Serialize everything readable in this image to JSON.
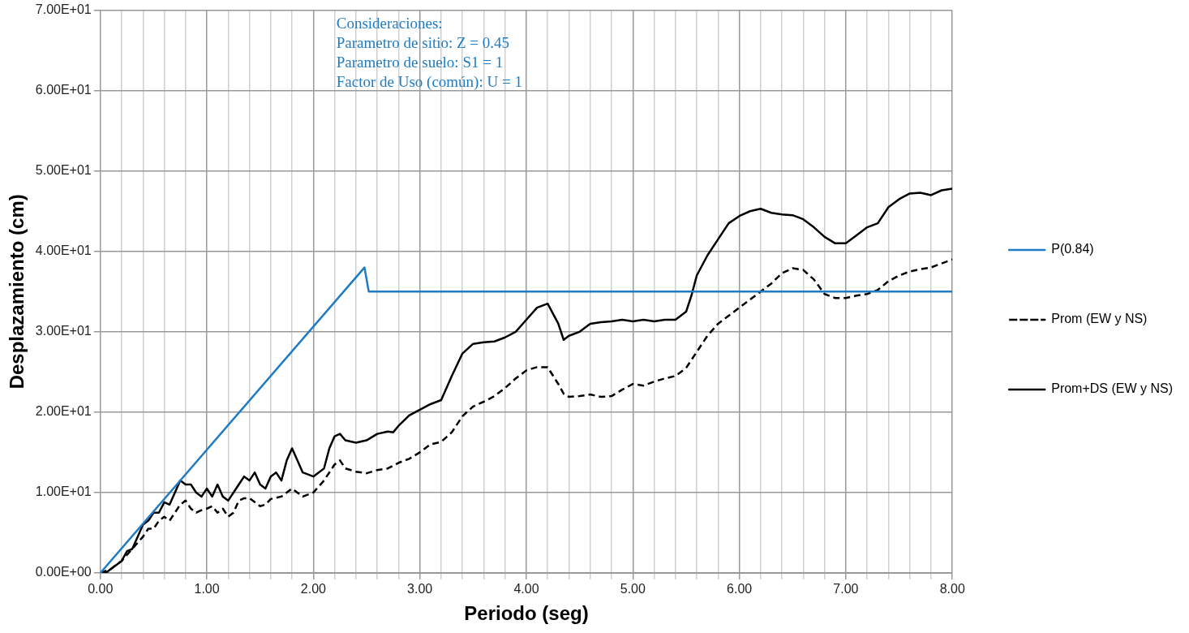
{
  "chart_data": {
    "type": "line",
    "xlabel": "Periodo (seg)",
    "ylabel": "Desplazamiento (cm)",
    "annotations": [
      "Consideraciones:",
      "Parametro de sitio: Z = 0.45",
      "Parametro de suelo: S1 = 1",
      "Factor de Uso (común): U = 1"
    ],
    "xlim": [
      0,
      8
    ],
    "xticks": [
      {
        "value": 0,
        "label": "0.00"
      },
      {
        "value": 0.2,
        "label": null
      },
      {
        "value": 0.4,
        "label": null
      },
      {
        "value": 0.6,
        "label": null
      },
      {
        "value": 0.8,
        "label": null
      },
      {
        "value": 1,
        "label": "1.00"
      },
      {
        "value": 1.2,
        "label": null
      },
      {
        "value": 1.4,
        "label": null
      },
      {
        "value": 1.6,
        "label": null
      },
      {
        "value": 1.8,
        "label": null
      },
      {
        "value": 2,
        "label": "2.00"
      },
      {
        "value": 2.2,
        "label": null
      },
      {
        "value": 2.4,
        "label": null
      },
      {
        "value": 2.6,
        "label": null
      },
      {
        "value": 2.8,
        "label": null
      },
      {
        "value": 3,
        "label": "3.00"
      },
      {
        "value": 3.2,
        "label": null
      },
      {
        "value": 3.4,
        "label": null
      },
      {
        "value": 3.6,
        "label": null
      },
      {
        "value": 3.8,
        "label": null
      },
      {
        "value": 4,
        "label": "4.00"
      },
      {
        "value": 4.2,
        "label": null
      },
      {
        "value": 4.4,
        "label": null
      },
      {
        "value": 4.6,
        "label": null
      },
      {
        "value": 4.8,
        "label": null
      },
      {
        "value": 5,
        "label": "5.00"
      },
      {
        "value": 5.2,
        "label": null
      },
      {
        "value": 5.4,
        "label": null
      },
      {
        "value": 5.6,
        "label": null
      },
      {
        "value": 5.8,
        "label": null
      },
      {
        "value": 6,
        "label": "6.00"
      },
      {
        "value": 6.2,
        "label": null
      },
      {
        "value": 6.4,
        "label": null
      },
      {
        "value": 6.6,
        "label": null
      },
      {
        "value": 6.8,
        "label": null
      },
      {
        "value": 7,
        "label": "7.00"
      },
      {
        "value": 7.2,
        "label": null
      },
      {
        "value": 7.4,
        "label": null
      },
      {
        "value": 7.6,
        "label": null
      },
      {
        "value": 7.8,
        "label": null
      },
      {
        "value": 8,
        "label": "8.00"
      }
    ],
    "ylim": [
      0,
      70
    ],
    "yticks": [
      {
        "value": 0,
        "label": "0.00E+00"
      },
      {
        "value": 10,
        "label": "1.00E+01"
      },
      {
        "value": 20,
        "label": "2.00E+01"
      },
      {
        "value": 30,
        "label": "3.00E+01"
      },
      {
        "value": 40,
        "label": "4.00E+01"
      },
      {
        "value": 50,
        "label": "5.00E+01"
      },
      {
        "value": 60,
        "label": "6.00E+01"
      },
      {
        "value": 70,
        "label": "7.00E+01"
      }
    ],
    "grid": true,
    "legend": "right",
    "marker": "none",
    "series": [
      {
        "name": "P(0.84)",
        "color": "#1f7bc4",
        "line_style": "solid",
        "x": [
          0,
          2.48,
          2.52,
          8
        ],
        "values": [
          0,
          38,
          35,
          35
        ]
      },
      {
        "name": "Prom (EW y NS)",
        "color": "#000000",
        "line_style": "dashed",
        "x": [
          0,
          0.1,
          0.2,
          0.3,
          0.4,
          0.45,
          0.5,
          0.55,
          0.6,
          0.65,
          0.7,
          0.75,
          0.8,
          0.85,
          0.9,
          0.95,
          1,
          1.05,
          1.1,
          1.15,
          1.2,
          1.25,
          1.3,
          1.35,
          1.4,
          1.45,
          1.5,
          1.55,
          1.6,
          1.7,
          1.8,
          1.85,
          1.9,
          2,
          2.1,
          2.2,
          2.25,
          2.3,
          2.4,
          2.5,
          2.6,
          2.7,
          2.8,
          2.9,
          3,
          3.1,
          3.2,
          3.3,
          3.4,
          3.5,
          3.6,
          3.7,
          3.8,
          3.9,
          4,
          4.1,
          4.2,
          4.3,
          4.35,
          4.4,
          4.5,
          4.6,
          4.7,
          4.8,
          4.9,
          5,
          5.1,
          5.2,
          5.3,
          5.4,
          5.5,
          5.6,
          5.7,
          5.8,
          5.9,
          6,
          6.1,
          6.2,
          6.3,
          6.4,
          6.5,
          6.6,
          6.7,
          6.8,
          6.9,
          7,
          7.1,
          7.2,
          7.3,
          7.4,
          7.5,
          7.6,
          7.7,
          7.8,
          7.9,
          8
        ],
        "values": [
          0,
          0.5,
          1.5,
          3,
          4.5,
          5.5,
          5.5,
          6.5,
          7,
          6.5,
          7.5,
          8.5,
          9,
          8,
          7.5,
          7.8,
          8,
          8.3,
          7.5,
          8,
          7,
          7.5,
          9,
          9.3,
          9.3,
          8.8,
          8.3,
          8.5,
          9.2,
          9.5,
          10.5,
          10,
          9.5,
          10,
          11.5,
          13.5,
          14,
          13,
          12.6,
          12.4,
          12.8,
          13,
          13.7,
          14.2,
          15,
          16,
          16.3,
          17.5,
          19.5,
          20.7,
          21.3,
          22,
          23,
          24.2,
          25.2,
          25.6,
          25.6,
          23.5,
          22.3,
          21.9,
          22,
          22.2,
          21.9,
          22,
          22.8,
          23.5,
          23.3,
          23.8,
          24.2,
          24.5,
          25.5,
          27.5,
          29.5,
          31,
          32,
          33,
          34,
          35,
          36,
          37.3,
          37.9,
          37.7,
          36.5,
          34.7,
          34.2,
          34.2,
          34.5,
          34.7,
          35.2,
          36.3,
          37,
          37.5,
          37.8,
          38,
          38.5,
          39
        ]
      },
      {
        "name": "Prom+DS (EW y NS)",
        "color": "#000000",
        "line_style": "solid",
        "x": [
          0,
          0.05,
          0.1,
          0.2,
          0.25,
          0.3,
          0.35,
          0.4,
          0.45,
          0.5,
          0.55,
          0.6,
          0.65,
          0.7,
          0.75,
          0.8,
          0.85,
          0.9,
          0.95,
          1,
          1.05,
          1.1,
          1.15,
          1.2,
          1.25,
          1.3,
          1.35,
          1.4,
          1.45,
          1.5,
          1.55,
          1.6,
          1.65,
          1.7,
          1.75,
          1.8,
          1.85,
          1.9,
          2,
          2.05,
          2.1,
          2.15,
          2.2,
          2.25,
          2.3,
          2.4,
          2.5,
          2.6,
          2.7,
          2.75,
          2.8,
          2.9,
          3,
          3.1,
          3.2,
          3.3,
          3.4,
          3.5,
          3.6,
          3.7,
          3.8,
          3.9,
          4,
          4.1,
          4.2,
          4.3,
          4.35,
          4.4,
          4.5,
          4.6,
          4.7,
          4.8,
          4.9,
          5,
          5.1,
          5.2,
          5.3,
          5.4,
          5.5,
          5.55,
          5.6,
          5.7,
          5.8,
          5.9,
          6,
          6.1,
          6.2,
          6.3,
          6.4,
          6.5,
          6.6,
          6.7,
          6.8,
          6.9,
          7,
          7.1,
          7.2,
          7.3,
          7.4,
          7.5,
          7.6,
          7.7,
          7.8,
          7.9,
          8
        ],
        "values": [
          0,
          0,
          0.5,
          1.5,
          2.7,
          3,
          4.5,
          6,
          6.5,
          7.5,
          7.5,
          8.8,
          8.5,
          10,
          11.5,
          11,
          11,
          10,
          9.5,
          10.5,
          9.5,
          11,
          9.5,
          9,
          10,
          11,
          12,
          11.5,
          12.5,
          11,
          10.5,
          12,
          12.5,
          11.5,
          14,
          15.5,
          14,
          12.5,
          12,
          12.5,
          13,
          15.5,
          17,
          17.3,
          16.5,
          16.2,
          16.5,
          17.3,
          17.6,
          17.5,
          18.3,
          19.6,
          20.3,
          21,
          21.5,
          24.5,
          27.3,
          28.5,
          28.7,
          28.8,
          29.3,
          30,
          31.5,
          33,
          33.5,
          31,
          29,
          29.5,
          30,
          31,
          31.2,
          31.3,
          31.5,
          31.3,
          31.5,
          31.3,
          31.5,
          31.5,
          32.5,
          34.5,
          37,
          39.5,
          41.5,
          43.5,
          44.4,
          45,
          45.3,
          44.8,
          44.6,
          44.5,
          44,
          43,
          41.8,
          41,
          41,
          42,
          43,
          43.5,
          45.5,
          46.5,
          47.2,
          47.3,
          47,
          47.6,
          47.8
        ]
      }
    ]
  }
}
